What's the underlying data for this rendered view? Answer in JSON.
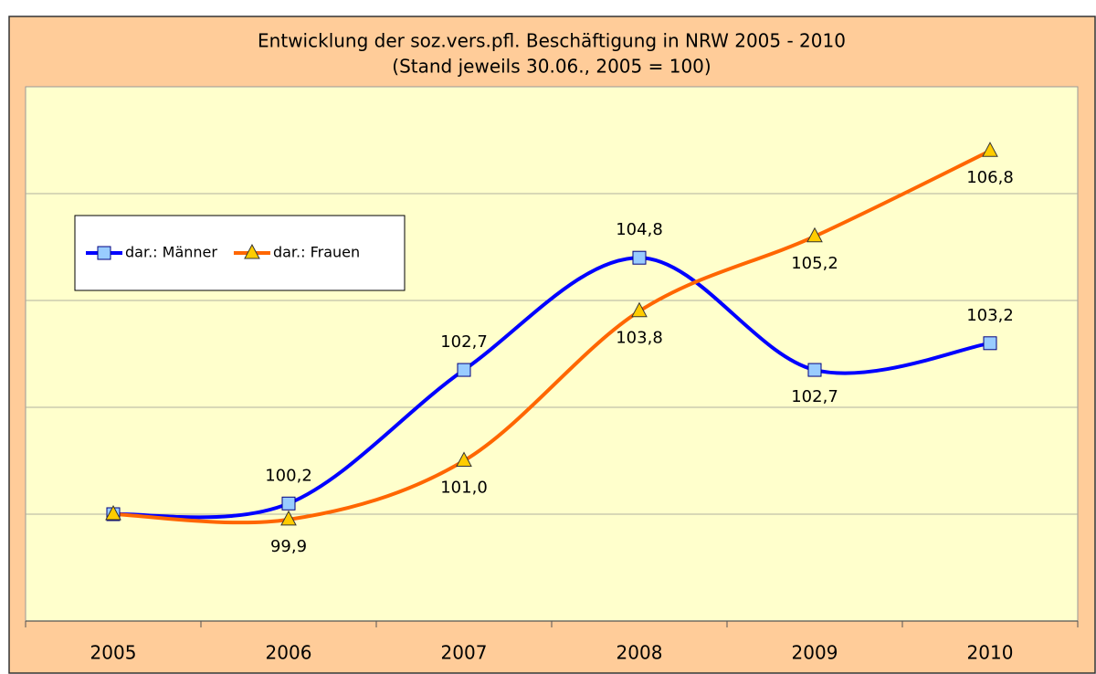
{
  "chart_data": {
    "type": "line",
    "title": "Entwicklung der soz.vers.pfl. Beschäftigung in NRW 2005 - 2010",
    "subtitle": "(Stand jeweils 30.06., 2005 = 100)",
    "categories": [
      "2005",
      "2006",
      "2007",
      "2008",
      "2009",
      "2010"
    ],
    "series": [
      {
        "name": "dar.: Männer",
        "color": "#0000ff",
        "marker_color": "#99ccff",
        "marker": "square",
        "values": [
          100,
          100.2,
          102.7,
          104.8,
          102.7,
          103.2
        ],
        "value_labels": [
          null,
          "100,2",
          "102,7",
          "104,8",
          "102,7",
          "103,2"
        ]
      },
      {
        "name": "dar.: Frauen",
        "color": "#ff6600",
        "marker_color": "#ffcc00",
        "marker": "triangle",
        "values": [
          100,
          99.9,
          101.0,
          103.8,
          105.2,
          106.8
        ],
        "value_labels": [
          null,
          "99,9",
          "101,0",
          "103,8",
          "105,2",
          "106,8"
        ]
      }
    ],
    "ylim": [
      98,
      108
    ],
    "yticks": [
      98,
      100,
      102,
      104,
      106,
      108
    ],
    "grid": true,
    "smooth": true,
    "legend": "upper left"
  }
}
